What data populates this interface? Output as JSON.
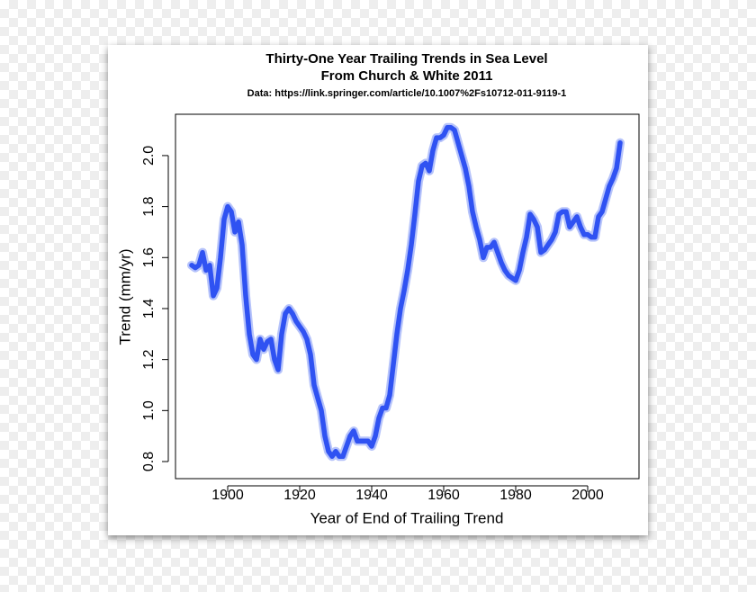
{
  "chart_data": {
    "type": "line",
    "title": "Thirty-One Year Trailing Trends in Sea Level",
    "subtitle": "From Church & White 2011",
    "source": "Data: https://link.springer.com/article/10.1007%2Fs10712-011-9119-1",
    "xlabel": "Year of End of Trailing Trend",
    "ylabel": "Trend (mm/yr)",
    "x": [
      1890,
      1891,
      1892,
      1893,
      1894,
      1895,
      1896,
      1897,
      1898,
      1899,
      1900,
      1901,
      1902,
      1903,
      1904,
      1905,
      1906,
      1907,
      1908,
      1909,
      1910,
      1911,
      1912,
      1913,
      1914,
      1915,
      1916,
      1917,
      1918,
      1919,
      1920,
      1921,
      1922,
      1923,
      1924,
      1925,
      1926,
      1927,
      1928,
      1929,
      1930,
      1931,
      1932,
      1933,
      1934,
      1935,
      1936,
      1937,
      1938,
      1939,
      1940,
      1941,
      1942,
      1943,
      1944,
      1945,
      1946,
      1947,
      1948,
      1949,
      1950,
      1951,
      1952,
      1953,
      1954,
      1955,
      1956,
      1957,
      1958,
      1959,
      1960,
      1961,
      1962,
      1963,
      1964,
      1965,
      1966,
      1967,
      1968,
      1969,
      1970,
      1971,
      1972,
      1973,
      1974,
      1975,
      1976,
      1977,
      1978,
      1979,
      1980,
      1981,
      1982,
      1983,
      1984,
      1985,
      1986,
      1987,
      1988,
      1989,
      1990,
      1991,
      1992,
      1993,
      1994,
      1995,
      1996,
      1997,
      1998,
      1999,
      2000,
      2001,
      2002,
      2003,
      2004,
      2005,
      2006,
      2007,
      2008,
      2009
    ],
    "series": [
      {
        "color": "#2f52f2",
        "values": [
          1.57,
          1.56,
          1.57,
          1.62,
          1.55,
          1.57,
          1.45,
          1.48,
          1.6,
          1.75,
          1.8,
          1.78,
          1.7,
          1.74,
          1.65,
          1.45,
          1.3,
          1.22,
          1.2,
          1.28,
          1.24,
          1.27,
          1.28,
          1.2,
          1.16,
          1.3,
          1.38,
          1.4,
          1.38,
          1.35,
          1.33,
          1.31,
          1.28,
          1.22,
          1.1,
          1.05,
          1.0,
          0.9,
          0.84,
          0.82,
          0.84,
          0.82,
          0.82,
          0.86,
          0.9,
          0.92,
          0.88,
          0.88,
          0.88,
          0.88,
          0.86,
          0.9,
          0.97,
          1.01,
          1.01,
          1.06,
          1.18,
          1.3,
          1.4,
          1.47,
          1.55,
          1.65,
          1.77,
          1.9,
          1.96,
          1.97,
          1.94,
          2.02,
          2.07,
          2.07,
          2.08,
          2.11,
          2.11,
          2.1,
          2.05,
          2.0,
          1.95,
          1.88,
          1.78,
          1.72,
          1.67,
          1.6,
          1.64,
          1.64,
          1.66,
          1.62,
          1.58,
          1.55,
          1.53,
          1.52,
          1.51,
          1.55,
          1.62,
          1.68,
          1.77,
          1.75,
          1.72,
          1.62,
          1.63,
          1.65,
          1.67,
          1.7,
          1.77,
          1.78,
          1.78,
          1.72,
          1.74,
          1.76,
          1.72,
          1.69,
          1.69,
          1.68,
          1.68,
          1.76,
          1.78,
          1.83,
          1.88,
          1.91,
          1.95,
          2.05
        ]
      }
    ],
    "xlim": [
      1885.5,
      2014.25
    ],
    "xticks": [
      1900,
      1920,
      1940,
      1960,
      1980,
      2000
    ],
    "ylim": [
      0.733,
      2.162
    ],
    "yticks": [
      0.8,
      {
        "value": 1,
        "label": "1.0"
      },
      1.2,
      1.4,
      1.6,
      1.8,
      {
        "value": 2,
        "label": "2.0"
      }
    ]
  }
}
